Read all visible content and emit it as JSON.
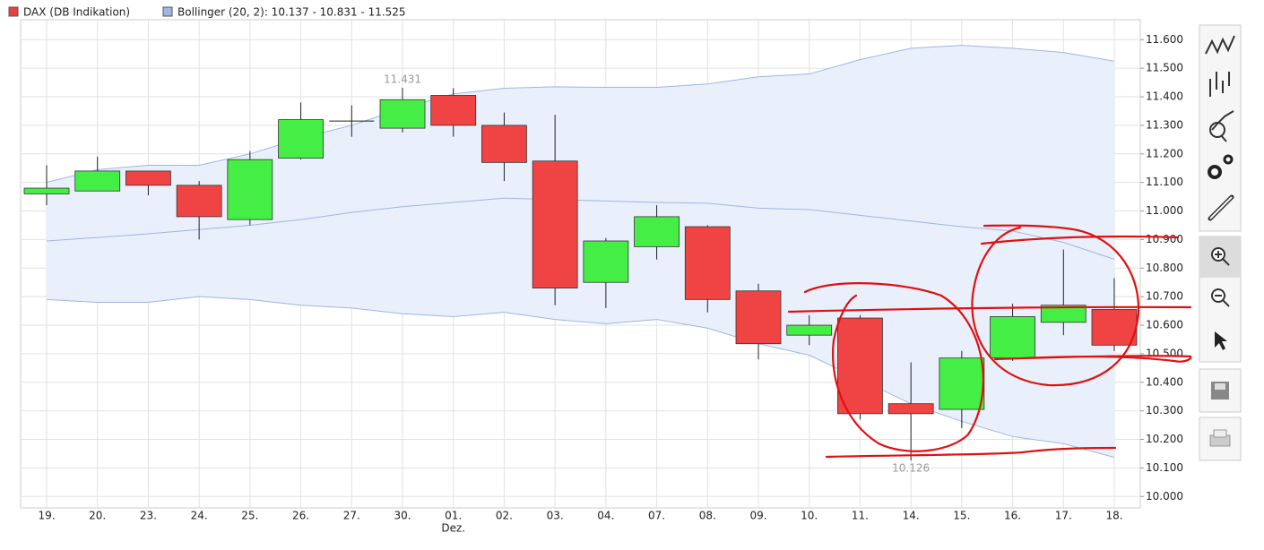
{
  "chart_data": {
    "type": "candlestick",
    "categories": [
      "19.",
      "20.",
      "23.",
      "24.",
      "25.",
      "26.",
      "27.",
      "30.",
      "01.",
      "02.",
      "03.",
      "04.",
      "07.",
      "08.",
      "09.",
      "10.",
      "11.",
      "14.",
      "15.",
      "16.",
      "17.",
      "18."
    ],
    "x_secondary_labels": [
      null,
      null,
      null,
      null,
      null,
      null,
      null,
      null,
      "Dez.",
      null,
      null,
      null,
      null,
      null,
      null,
      null,
      null,
      null,
      null,
      null,
      null,
      null
    ],
    "series": [
      {
        "name": "DAX (DB Indikation)",
        "type": "candlestick",
        "color": "#e84040",
        "up_color": "#44ee44",
        "down_color": "#f04444",
        "open": [
          11.06,
          11.07,
          11.14,
          11.09,
          10.97,
          11.185,
          11.315,
          11.29,
          11.405,
          11.3,
          11.175,
          10.75,
          10.875,
          10.945,
          10.72,
          10.565,
          10.625,
          10.325,
          10.305,
          10.485,
          10.61,
          10.655
        ],
        "high": [
          11.16,
          11.19,
          11.14,
          11.105,
          11.21,
          11.38,
          11.37,
          11.431,
          11.43,
          11.345,
          11.337,
          10.905,
          11.02,
          10.95,
          10.745,
          10.635,
          10.635,
          10.47,
          10.51,
          10.675,
          10.865,
          10.765
        ],
        "low": [
          11.02,
          11.07,
          11.055,
          10.9,
          10.95,
          11.18,
          11.26,
          11.275,
          11.26,
          11.105,
          10.67,
          10.66,
          10.83,
          10.645,
          10.48,
          10.53,
          10.27,
          10.126,
          10.24,
          10.475,
          10.565,
          10.51
        ],
        "close": [
          11.08,
          11.14,
          11.09,
          10.98,
          11.18,
          11.32,
          11.315,
          11.39,
          11.3,
          11.17,
          10.73,
          10.895,
          10.98,
          10.69,
          10.535,
          10.6,
          10.29,
          10.29,
          10.485,
          10.63,
          10.67,
          10.53
        ]
      },
      {
        "name": "Bollinger (20, 2): 10.137 - 10.831 - 11.525",
        "type": "band",
        "color": "#9fb6e0",
        "fill": "#e9f0fc",
        "upper": [
          11.1,
          11.145,
          11.16,
          11.16,
          11.2,
          11.255,
          11.3,
          11.36,
          11.41,
          11.43,
          11.435,
          11.433,
          11.433,
          11.445,
          11.47,
          11.48,
          11.53,
          11.57,
          11.58,
          11.57,
          11.555,
          11.525
        ],
        "middle": [
          10.895,
          10.907,
          10.92,
          10.935,
          10.95,
          10.97,
          10.995,
          11.015,
          11.03,
          11.045,
          11.04,
          11.035,
          11.03,
          11.027,
          11.01,
          11.005,
          10.985,
          10.965,
          10.945,
          10.93,
          10.89,
          10.831
        ],
        "lower": [
          10.69,
          10.68,
          10.68,
          10.7,
          10.69,
          10.67,
          10.66,
          10.64,
          10.63,
          10.645,
          10.62,
          10.605,
          10.62,
          10.59,
          10.535,
          10.495,
          10.41,
          10.325,
          10.263,
          10.21,
          10.185,
          10.137
        ]
      }
    ],
    "annotations": [
      {
        "label": "11.431",
        "value": 11.431,
        "category": "30."
      },
      {
        "label": "10.126",
        "value": 10.126,
        "category": "14."
      }
    ],
    "ylim": [
      9.96,
      11.67
    ],
    "yticks": [
      {
        "value": 10.0,
        "label": "10.000"
      },
      {
        "value": 10.1,
        "label": "10.100"
      },
      {
        "value": 10.2,
        "label": "10.200"
      },
      {
        "value": 10.3,
        "label": "10.300"
      },
      {
        "value": 10.4,
        "label": "10.400"
      },
      {
        "value": 10.5,
        "label": "10.500"
      },
      {
        "value": 10.6,
        "label": "10.600"
      },
      {
        "value": 10.7,
        "label": "10.700"
      },
      {
        "value": 10.8,
        "label": "10.800"
      },
      {
        "value": 10.9,
        "label": "10.900"
      },
      {
        "value": 11.0,
        "label": "11.000"
      },
      {
        "value": 11.1,
        "label": "11.100"
      },
      {
        "value": 11.2,
        "label": "11.200"
      },
      {
        "value": 11.3,
        "label": "11.300"
      },
      {
        "value": 11.4,
        "label": "11.400"
      },
      {
        "value": 11.5,
        "label": "11.500"
      },
      {
        "value": 11.6,
        "label": "11.600"
      }
    ],
    "grid": true,
    "legend": "top-left"
  }
}
